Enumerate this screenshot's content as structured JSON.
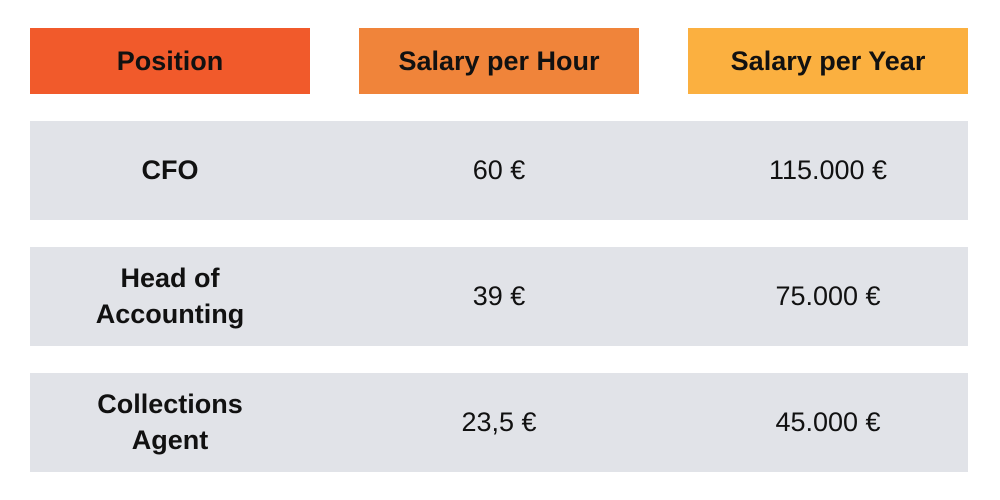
{
  "table": {
    "headers": [
      "Position",
      "Salary per Hour",
      "Salary per Year"
    ],
    "rows": [
      [
        "CFO",
        "60 €",
        "115.000 €"
      ],
      [
        "Head of Accounting",
        "39 €",
        "75.000 €"
      ],
      [
        "Collections Agent",
        "23,5 €",
        "45.000 €"
      ]
    ]
  }
}
